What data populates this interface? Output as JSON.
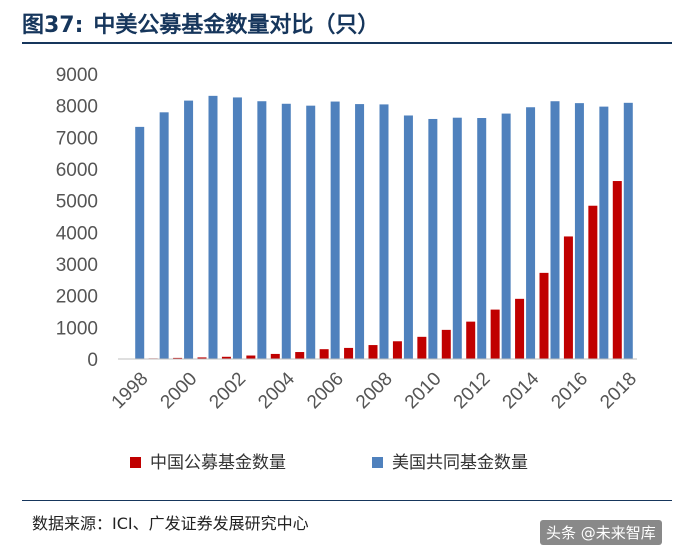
{
  "header": {
    "figure_label": "图37:",
    "title": "中美公募基金数量对比（只）"
  },
  "source_text": "数据来源：ICI、广发证券发展研究中心",
  "watermark_text": "头条 @未来智库",
  "colors": {
    "china": "#c00000",
    "us": "#4f81bd",
    "title": "#16365c"
  },
  "chart_data": {
    "type": "bar",
    "years": [
      1998,
      1999,
      2000,
      2001,
      2002,
      2003,
      2004,
      2005,
      2006,
      2007,
      2008,
      2009,
      2010,
      2011,
      2012,
      2013,
      2014,
      2015,
      2016,
      2017,
      2018
    ],
    "x_tick_labels": [
      "1998",
      "2000",
      "2002",
      "2004",
      "2006",
      "2008",
      "2010",
      "2012",
      "2014",
      "2016",
      "2018"
    ],
    "series": [
      {
        "name": "中国公募基金数量",
        "color": "#c00000",
        "values": [
          5,
          20,
          35,
          50,
          70,
          110,
          160,
          220,
          310,
          350,
          440,
          560,
          700,
          920,
          1180,
          1560,
          1900,
          2720,
          3870,
          4840,
          5620
        ]
      },
      {
        "name": "美国共同基金数量",
        "color": "#4f81bd",
        "values": [
          7330,
          7790,
          8160,
          8310,
          8260,
          8140,
          8060,
          8000,
          8130,
          8050,
          8040,
          7690,
          7580,
          7620,
          7610,
          7750,
          7950,
          8140,
          8080,
          7970,
          8090
        ]
      }
    ],
    "yticks": [
      0,
      1000,
      2000,
      3000,
      4000,
      5000,
      6000,
      7000,
      8000,
      9000
    ],
    "ylim": [
      0,
      9000
    ],
    "legend_position": "bottom",
    "grid": false
  }
}
